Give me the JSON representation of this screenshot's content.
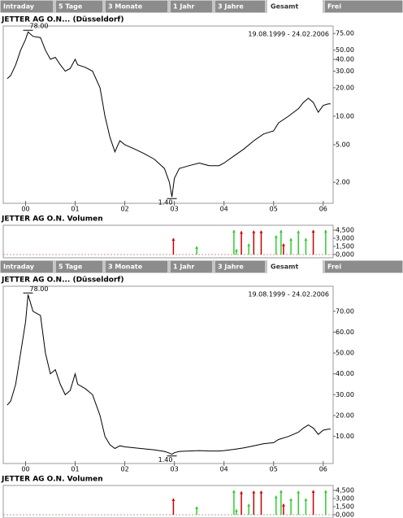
{
  "tabs": [
    "Intraday",
    "5 Tage",
    "3 Monate",
    "1 Jahr",
    "3 Jahre",
    "Gesamt",
    "Frei"
  ],
  "active_tab": 5,
  "chart_data": [
    {
      "type": "line",
      "title": "JETTER AG O.N... (Düsseldorf)",
      "subtitle": "19.08.1999 - 24.02.2006",
      "log_scale": true,
      "color": "#000000",
      "annotations": [
        "78.00",
        "1.40"
      ],
      "x": [
        1999.63,
        1999.7,
        1999.8,
        1999.9,
        2000.0,
        2000.05,
        2000.15,
        2000.3,
        2000.4,
        2000.5,
        2000.6,
        2000.7,
        2000.8,
        2000.9,
        2001.0,
        2001.05,
        2001.2,
        2001.35,
        2001.5,
        2001.6,
        2001.7,
        2001.8,
        2001.9,
        2002.0,
        2002.2,
        2002.4,
        2002.6,
        2002.8,
        2002.9,
        2002.95,
        2003.0,
        2003.1,
        2003.3,
        2003.5,
        2003.7,
        2003.9,
        2004.0,
        2004.2,
        2004.4,
        2004.6,
        2004.8,
        2005.0,
        2005.1,
        2005.3,
        2005.5,
        2005.6,
        2005.7,
        2005.8,
        2005.9,
        2006.0,
        2006.1,
        2006.15
      ],
      "values": [
        25,
        27,
        35,
        50,
        65,
        78,
        70,
        68,
        50,
        40,
        42,
        35,
        30,
        32,
        40,
        35,
        33,
        30,
        20,
        10,
        6,
        4.2,
        5.5,
        5.0,
        4.5,
        4.0,
        3.5,
        2.8,
        2.0,
        1.4,
        2.2,
        2.8,
        3.0,
        3.2,
        3.0,
        3.0,
        3.2,
        3.8,
        4.5,
        5.5,
        6.5,
        7,
        8.5,
        10,
        12,
        14,
        15.5,
        14,
        11,
        13,
        13.5,
        13.5
      ],
      "xlim": [
        1999.55,
        2006.2
      ],
      "xticks": [
        {
          "value": 2000,
          "label": "00"
        },
        {
          "value": 2001,
          "label": "01"
        },
        {
          "value": 2002,
          "label": "02"
        },
        {
          "value": 2003,
          "label": "03"
        },
        {
          "value": 2004,
          "label": "04"
        },
        {
          "value": 2005,
          "label": "05"
        },
        {
          "value": 2006,
          "label": "06"
        }
      ],
      "ylim": [
        1.2,
        90
      ],
      "yticks": [
        {
          "value": 2,
          "label": "2.00"
        },
        {
          "value": 5,
          "label": "5.00"
        },
        {
          "value": 10,
          "label": "10.00"
        },
        {
          "value": 20,
          "label": "20.00"
        },
        {
          "value": 30,
          "label": "30.00"
        },
        {
          "value": 40,
          "label": "40.00"
        },
        {
          "value": 50,
          "label": "50.00"
        },
        {
          "value": 75,
          "label": "75.00"
        }
      ]
    },
    {
      "type": "bar",
      "title": "JETTER AG O.N. Volumen",
      "x": [
        2002.98,
        2003.45,
        2004.2,
        2004.25,
        2004.35,
        2004.5,
        2004.6,
        2004.75,
        2005.05,
        2005.15,
        2005.2,
        2005.35,
        2005.5,
        2005.65,
        2005.8,
        2006.05
      ],
      "values": [
        3000,
        1500,
        4500,
        1000,
        4300,
        2000,
        4400,
        4400,
        3500,
        4500,
        2000,
        3000,
        4400,
        3000,
        4500,
        4500
      ],
      "colors": [
        "#cc0000",
        "#33cc33",
        "#33cc33",
        "#33cc33",
        "#cc0000",
        "#33cc33",
        "#cc0000",
        "#cc0000",
        "#33cc33",
        "#33cc33",
        "#cc0000",
        "#33cc33",
        "#33cc33",
        "#33cc33",
        "#cc0000",
        "#33cc33"
      ],
      "xlim": [
        1999.55,
        2006.2
      ],
      "ylim": [
        -600,
        5400
      ],
      "yticks": [
        {
          "value": 0,
          "label": "0,000"
        },
        {
          "value": 1500,
          "label": "1,500"
        },
        {
          "value": 3000,
          "label": "3,000"
        },
        {
          "value": 4500,
          "label": "4,500"
        }
      ]
    },
    {
      "type": "line",
      "title": "JETTER AG O.N... (Düsseldorf)",
      "subtitle": "19.08.1999 - 24.02.2006",
      "log_scale": false,
      "color": "#000000",
      "annotations": [
        "78.00",
        "1.40"
      ],
      "x": [
        1999.63,
        1999.7,
        1999.8,
        1999.9,
        2000.0,
        2000.05,
        2000.15,
        2000.3,
        2000.4,
        2000.5,
        2000.6,
        2000.7,
        2000.8,
        2000.9,
        2001.0,
        2001.05,
        2001.2,
        2001.35,
        2001.5,
        2001.6,
        2001.7,
        2001.8,
        2001.9,
        2002.0,
        2002.2,
        2002.4,
        2002.6,
        2002.8,
        2002.9,
        2002.95,
        2003.0,
        2003.1,
        2003.3,
        2003.5,
        2003.7,
        2003.9,
        2004.0,
        2004.2,
        2004.4,
        2004.6,
        2004.8,
        2005.0,
        2005.1,
        2005.3,
        2005.5,
        2005.6,
        2005.7,
        2005.8,
        2005.9,
        2006.0,
        2006.1,
        2006.15
      ],
      "values": [
        25,
        27,
        35,
        50,
        65,
        78,
        70,
        68,
        50,
        40,
        42,
        35,
        30,
        32,
        40,
        35,
        33,
        30,
        20,
        10,
        6,
        4.2,
        5.5,
        5.0,
        4.5,
        4.0,
        3.5,
        2.8,
        2.0,
        1.4,
        2.2,
        2.8,
        3.0,
        3.2,
        3.0,
        3.0,
        3.2,
        3.8,
        4.5,
        5.5,
        6.5,
        7,
        8.5,
        10,
        12,
        14,
        15.5,
        14,
        11,
        13,
        13.5,
        13.5
      ],
      "xlim": [
        1999.55,
        2006.2
      ],
      "xticks": [
        {
          "value": 2000,
          "label": "00"
        },
        {
          "value": 2001,
          "label": "01"
        },
        {
          "value": 2002,
          "label": "02"
        },
        {
          "value": 2003,
          "label": "03"
        },
        {
          "value": 2004,
          "label": "04"
        },
        {
          "value": 2005,
          "label": "05"
        },
        {
          "value": 2006,
          "label": "06"
        }
      ],
      "ylim": [
        -3,
        82
      ],
      "yticks": [
        {
          "value": 10,
          "label": "10.00"
        },
        {
          "value": 20,
          "label": "20.00"
        },
        {
          "value": 30,
          "label": "30.00"
        },
        {
          "value": 40,
          "label": "40.00"
        },
        {
          "value": 50,
          "label": "50.00"
        },
        {
          "value": 60,
          "label": "60.00"
        },
        {
          "value": 70,
          "label": "70.00"
        }
      ]
    },
    {
      "type": "bar",
      "title": "JETTER AG O.N. Volumen",
      "x": [
        2002.98,
        2003.45,
        2004.2,
        2004.25,
        2004.35,
        2004.5,
        2004.6,
        2004.75,
        2005.05,
        2005.15,
        2005.2,
        2005.35,
        2005.5,
        2005.65,
        2005.8,
        2006.05
      ],
      "values": [
        3000,
        1500,
        4500,
        1000,
        4300,
        2000,
        4400,
        4400,
        3500,
        4500,
        2000,
        3000,
        4400,
        3000,
        4500,
        4500
      ],
      "colors": [
        "#cc0000",
        "#33cc33",
        "#33cc33",
        "#33cc33",
        "#cc0000",
        "#33cc33",
        "#cc0000",
        "#cc0000",
        "#33cc33",
        "#33cc33",
        "#cc0000",
        "#33cc33",
        "#33cc33",
        "#33cc33",
        "#cc0000",
        "#33cc33"
      ],
      "xlim": [
        1999.55,
        2006.2
      ],
      "ylim": [
        -600,
        5400
      ],
      "yticks": [
        {
          "value": 0,
          "label": "0,000"
        },
        {
          "value": 1500,
          "label": "1,500"
        },
        {
          "value": 3000,
          "label": "3,000"
        },
        {
          "value": 4500,
          "label": "4,500"
        }
      ]
    }
  ]
}
